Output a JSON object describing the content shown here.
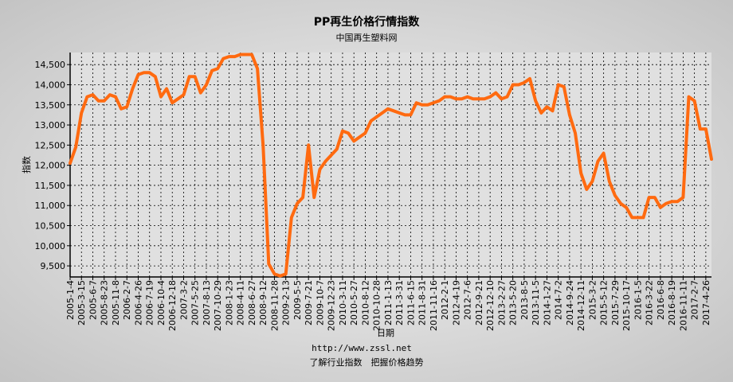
{
  "chart_data": {
    "type": "line",
    "title": "PP再生价格行情指数",
    "subtitle": "中国再生塑料网",
    "y_label": "指数",
    "x_label": "日期",
    "footer_url": "http://www.zssl.net",
    "footer_slogan": "了解行业指数　把握价格趋势",
    "color": "#ff6a10",
    "grid": true,
    "categories": [
      "2005-1-4",
      null,
      "2005-3-15",
      null,
      "2005-6-7",
      null,
      "2005-8-23",
      null,
      "2005-11-8",
      null,
      "2006-2-7",
      null,
      "2006-4-26",
      null,
      "2006-7-19",
      null,
      "2006-10-4",
      null,
      "2006-12-18",
      null,
      "2007-3-2",
      null,
      "2007-5-25",
      null,
      "2007-8-13",
      null,
      "2007-10-29",
      null,
      "2008-1-23",
      null,
      "2008-4-11",
      null,
      "2008-6-27",
      null,
      "2008-9-12",
      null,
      "2008-11-28",
      null,
      "2009-2-13",
      null,
      "2009-5-5",
      null,
      "2009-7-21",
      null,
      "2009-10-7",
      null,
      "2009-12-23",
      null,
      "2010-3-11",
      null,
      "2010-5-27",
      null,
      "2010-8-12",
      null,
      "2010-10-28",
      null,
      "2011-1-13",
      null,
      "2011-3-31",
      null,
      "2011-6-15",
      null,
      "2011-8-31",
      null,
      "2011-11-16",
      null,
      "2012-2-1",
      null,
      "2012-4-19",
      null,
      "2012-7-6",
      null,
      "2012-9-21",
      null,
      "2012-12-10",
      null,
      "2013-2-27",
      null,
      "2013-5-20",
      null,
      "2013-8-5",
      null,
      "2013-11-5",
      null,
      "2014-1-27",
      null,
      "2014-7-2",
      null,
      "2014-9-24",
      null,
      "2014-12-11",
      null,
      "2015-3-2",
      null,
      "2015-5-12",
      null,
      "2015-7-29",
      null,
      "2015-10-17",
      null,
      "2016-1-5",
      null,
      "2016-3-22",
      null,
      "2016-6-8",
      null,
      "2016-8-19",
      null,
      "2016-11-11",
      null,
      "2017-2-7",
      null,
      "2017-4-26",
      null
    ],
    "values": [
      12050,
      12450,
      13300,
      13700,
      13750,
      13600,
      13600,
      13750,
      13700,
      13400,
      13450,
      13900,
      14250,
      14300,
      14300,
      14200,
      13700,
      13900,
      13550,
      13650,
      13750,
      14200,
      14200,
      13800,
      14000,
      14350,
      14400,
      14650,
      14700,
      14700,
      14750,
      14750,
      14750,
      14400,
      12500,
      9550,
      9300,
      9250,
      9300,
      10700,
      11050,
      11200,
      12500,
      11200,
      11900,
      12100,
      12250,
      12400,
      12850,
      12800,
      12600,
      12700,
      12800,
      13100,
      13200,
      13300,
      13400,
      13350,
      13300,
      13250,
      13250,
      13550,
      13500,
      13500,
      13550,
      13600,
      13700,
      13700,
      13650,
      13650,
      13700,
      13650,
      13650,
      13650,
      13700,
      13800,
      13650,
      13700,
      14000,
      14000,
      14050,
      14150,
      13600,
      13300,
      13450,
      13350,
      14000,
      13950,
      13250,
      12800,
      11800,
      11400,
      11600,
      12100,
      12300,
      11600,
      11250,
      11050,
      10950,
      10700,
      10700,
      10700,
      11200,
      11200,
      10950,
      11050,
      11100,
      11100,
      11200,
      13700,
      13600,
      12900,
      12900,
      12150
    ],
    "ylim": [
      9225,
      14800
    ],
    "yticks": [
      {
        "value": 9500,
        "label": "9,500"
      },
      {
        "value": 10000,
        "label": "10,000"
      },
      {
        "value": 10500,
        "label": "10,500"
      },
      {
        "value": 11000,
        "label": "11,000"
      },
      {
        "value": 11500,
        "label": "11,500"
      },
      {
        "value": 12000,
        "label": "12,000"
      },
      {
        "value": 12500,
        "label": "12,500"
      },
      {
        "value": 13000,
        "label": "13,000"
      },
      {
        "value": 13500,
        "label": "13,500"
      },
      {
        "value": 14000,
        "label": "14,000"
      },
      {
        "value": 14500,
        "label": "14,500"
      }
    ]
  }
}
